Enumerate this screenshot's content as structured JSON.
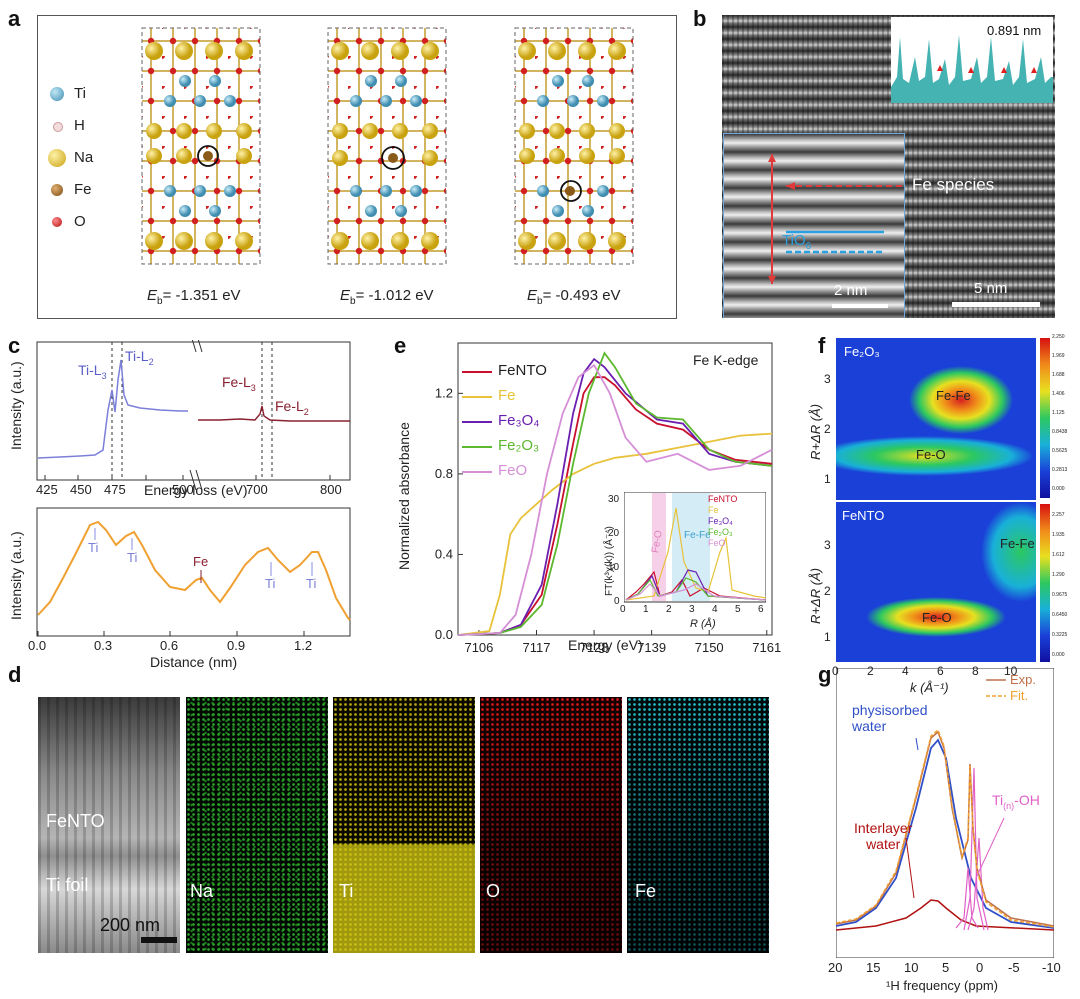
{
  "panels": {
    "a": "a",
    "b": "b",
    "c": "c",
    "d": "d",
    "e": "e",
    "f": "f",
    "g": "g"
  },
  "a": {
    "legend": [
      "Ti",
      "H",
      "Na",
      "Fe",
      "O"
    ],
    "legend_colors": [
      "#5aa9c9",
      "#f2d6d6",
      "#d9b52a",
      "#9a6a28",
      "#d21f1f"
    ],
    "energies": [
      {
        "E": "E",
        "sub": "b",
        "val": "= -1.351 eV"
      },
      {
        "E": "E",
        "sub": "b",
        "val": "= -1.012 eV"
      },
      {
        "E": "E",
        "sub": "b",
        "val": "= -0.493 eV"
      }
    ]
  },
  "b": {
    "period": "0.891 nm",
    "fe_label": "Fe species",
    "tio_label": "TiO",
    "tio_sub": "6",
    "scale_inset": "2 nm",
    "scale_main": "5 nm"
  },
  "c": {
    "top": {
      "ylabel": "Intensity (a.u.)",
      "xlabel": "Energy loss (eV)",
      "ticks_left": [
        "425",
        "450",
        "475",
        "500"
      ],
      "ticks_right": [
        "700",
        "800"
      ],
      "ti_l3": "Ti-L",
      "ti_l3_sub": "3",
      "ti_l2": "Ti-L",
      "ti_l2_sub": "2",
      "fe_l3": "Fe-L",
      "fe_l3_sub": "3",
      "fe_l2": "Fe-L",
      "fe_l2_sub": "2"
    },
    "bottom": {
      "ylabel": "Intensity (a.u.)",
      "xlabel": "Distance (nm)",
      "ticks": [
        "0.0",
        "0.3",
        "0.6",
        "0.9",
        "1.2"
      ],
      "peaks": [
        "Ti",
        "Ti",
        "Fe",
        "Ti",
        "Ti"
      ]
    }
  },
  "d": {
    "scale": "200 nm",
    "labels": {
      "feNTO": "FeNTO",
      "tifoil": "Ti foil",
      "na": "Na",
      "ti": "Ti",
      "o": "O",
      "fe": "Fe"
    }
  },
  "e": {
    "title": "Fe K-edge",
    "ylabel": "Normalized absorbance",
    "xlabel": "Energy (eV)",
    "inset_ylabel": "FT(k³χ(k)) (Å⁻⁴)",
    "inset_xlabel": "R (Å)",
    "inset_feo": "Fe-O",
    "inset_fefe": "Fe-Fe",
    "inset_xticks": [
      "0",
      "1",
      "2",
      "3",
      "4",
      "5",
      "6"
    ],
    "inset_yticks": [
      "0",
      "10",
      "20",
      "30"
    ],
    "legend": [
      {
        "name": "FeNTO",
        "color": "#c8102e"
      },
      {
        "name": "Fe",
        "color": "#e8c23a"
      },
      {
        "name": "Fe₃O₄",
        "color": "#6a1fb0"
      },
      {
        "name": "Fe₂O₃",
        "color": "#5cb82e"
      },
      {
        "name": "FeO",
        "color": "#d68fd6"
      }
    ]
  },
  "f": {
    "top_title": "Fe₂O₃",
    "bottom_title": "FeNTO",
    "top_labels": [
      "Fe-Fe",
      "Fe-O"
    ],
    "bottom_labels": [
      "Fe-Fe",
      "Fe-O"
    ],
    "ylabel": "R+ΔR (Å)",
    "xlabel": "k (Å⁻¹)",
    "xticks": [
      "0",
      "2",
      "4",
      "6",
      "8",
      "10"
    ],
    "yticks": [
      "1",
      "2",
      "3"
    ],
    "cbar_top": [
      "2.250",
      "1.969",
      "1.688",
      "1.406",
      "1.125",
      "0.8438",
      "0.5625",
      "0.2813",
      "0.000"
    ],
    "cbar_bot": [
      "2.257",
      "1.935",
      "1.612",
      "1.290",
      "0.9675",
      "0.6450",
      "0.3225",
      "0.000"
    ]
  },
  "g": {
    "legend": [
      "Exp.",
      "Fit."
    ],
    "physisorbed": "physisorbed\nwater",
    "interlayer": "Interlayer\nwater",
    "tioh": "Ti",
    "tioh_sub": "(n)",
    "tioh_tail": "-OH",
    "xlabel": "¹H frequency (ppm)",
    "xticks": [
      "20",
      "15",
      "10",
      "5",
      "0",
      "-5",
      "-10"
    ]
  },
  "chart_data": [
    {
      "type": "line",
      "title": "Fe K-edge",
      "xlabel": "Energy (eV)",
      "ylabel": "Normalized absorbance",
      "xlim": [
        7102,
        7162
      ],
      "ylim": [
        0,
        1.45
      ],
      "x_ticks": [
        7106,
        7117,
        7128,
        7139,
        7150,
        7161
      ],
      "y_ticks": [
        0.0,
        0.4,
        0.8,
        1.2
      ],
      "series": [
        {
          "name": "FeNTO",
          "x": [
            7102,
            7110,
            7114,
            7118,
            7121,
            7124,
            7126,
            7128,
            7130,
            7132,
            7136,
            7140,
            7145,
            7150,
            7155,
            7162
          ],
          "values": [
            0.0,
            0.01,
            0.05,
            0.2,
            0.55,
            0.95,
            1.2,
            1.28,
            1.28,
            1.24,
            1.12,
            1.05,
            1.02,
            0.92,
            0.87,
            0.85
          ]
        },
        {
          "name": "Fe",
          "x": [
            7102,
            7108,
            7110,
            7112,
            7114,
            7117,
            7120,
            7124,
            7128,
            7132,
            7138,
            7144,
            7150,
            7156,
            7162
          ],
          "values": [
            0.0,
            0.02,
            0.2,
            0.5,
            0.58,
            0.65,
            0.72,
            0.8,
            0.85,
            0.88,
            0.9,
            0.93,
            0.96,
            0.99,
            1.0
          ]
        },
        {
          "name": "Fe₃O₄",
          "x": [
            7102,
            7110,
            7114,
            7118,
            7121,
            7124,
            7126,
            7128,
            7130,
            7134,
            7140,
            7145,
            7150,
            7155,
            7162
          ],
          "values": [
            0.0,
            0.01,
            0.05,
            0.25,
            0.65,
            1.1,
            1.3,
            1.37,
            1.33,
            1.2,
            1.07,
            1.05,
            0.9,
            0.86,
            0.84
          ]
        },
        {
          "name": "Fe₂O₃",
          "x": [
            7102,
            7110,
            7114,
            7118,
            7121,
            7124,
            7127,
            7130,
            7132,
            7136,
            7140,
            7145,
            7150,
            7155,
            7162
          ],
          "values": [
            0.0,
            0.01,
            0.04,
            0.15,
            0.45,
            0.85,
            1.2,
            1.4,
            1.33,
            1.15,
            1.08,
            1.07,
            0.92,
            0.86,
            0.84
          ]
        },
        {
          "name": "FeO",
          "x": [
            7102,
            7110,
            7113,
            7116,
            7119,
            7122,
            7125,
            7128,
            7131,
            7134,
            7138,
            7144,
            7150,
            7156,
            7162
          ],
          "values": [
            0.0,
            0.01,
            0.1,
            0.4,
            0.8,
            1.1,
            1.28,
            1.34,
            1.2,
            0.98,
            0.86,
            0.9,
            0.82,
            0.84,
            0.92
          ]
        }
      ]
    }
  ]
}
